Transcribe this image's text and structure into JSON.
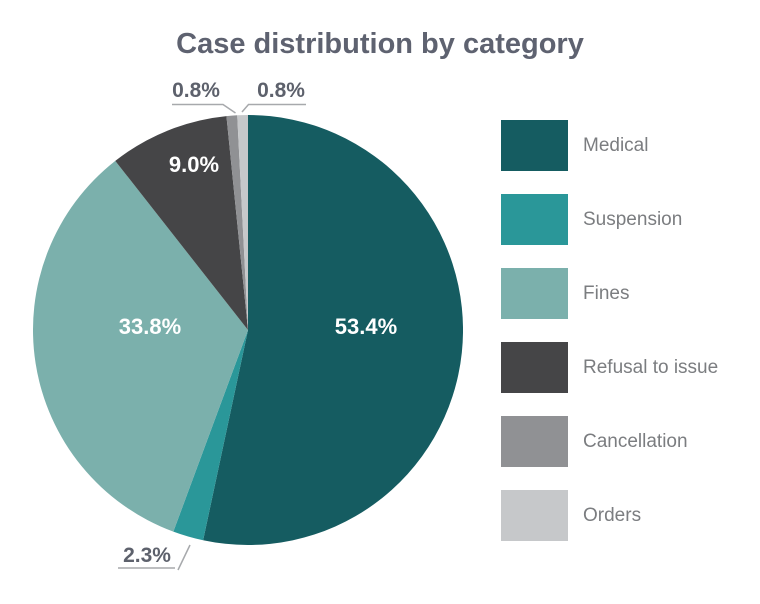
{
  "colors": {
    "background": "#ffffff",
    "title_text": "#5e6270",
    "inside_label_text": "#ffffff",
    "outside_label_text": "#5d616c",
    "legend_text": "#7b7d80",
    "leader_line": "#a7a9ac"
  },
  "chart_data": {
    "type": "pie",
    "title": "Case distribution by category",
    "start_angle_deg": 0,
    "direction": "clockwise",
    "legend_position": "right",
    "slices": [
      {
        "label": "Medical",
        "value": 53.4,
        "display": "53.4%",
        "color": "#155c61",
        "label_placement": "inside"
      },
      {
        "label": "Suspension",
        "value": 2.3,
        "display": "2.3%",
        "color": "#2a9799",
        "label_placement": "outside-bottom"
      },
      {
        "label": "Fines",
        "value": 33.8,
        "display": "33.8%",
        "color": "#7bb0ac",
        "label_placement": "inside"
      },
      {
        "label": "Refusal to issue",
        "value": 9.0,
        "display": "9.0%",
        "color": "#454547",
        "label_placement": "inside"
      },
      {
        "label": "Cancellation",
        "value": 0.8,
        "display": "0.8%",
        "color": "#909194",
        "label_placement": "outside-top-left"
      },
      {
        "label": "Orders",
        "value": 0.8,
        "display": "0.8%",
        "color": "#c6c8ca",
        "label_placement": "outside-top-right"
      }
    ]
  }
}
